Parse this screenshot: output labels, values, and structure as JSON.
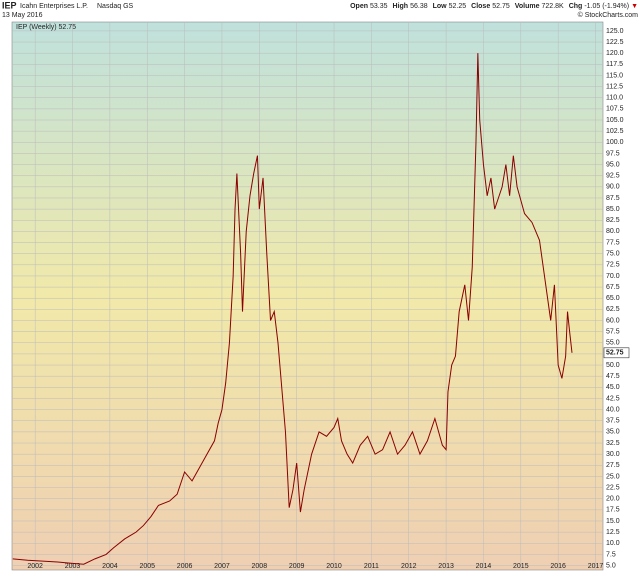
{
  "chart_data": {
    "type": "line",
    "symbol": "IEP",
    "company": "Icahn Enterprises L.P.",
    "exchange": "Nasdaq GS",
    "date": "13 May 2016",
    "quote": [
      {
        "label": "Open",
        "value": "53.35"
      },
      {
        "label": "High",
        "value": "56.38"
      },
      {
        "label": "Low",
        "value": "52.25"
      },
      {
        "label": "Close",
        "value": "52.75"
      },
      {
        "label": "Volume",
        "value": "722.8K"
      },
      {
        "label": "Chg",
        "value": "-1.05 (-1.94%)"
      }
    ],
    "change_arrow": "▼",
    "copyright": "© StockCharts.com",
    "last_value_label": "52.75",
    "x": [
      2001.4,
      2001.8,
      2002.2,
      2002.6,
      2003.0,
      2003.3,
      2003.6,
      2003.9,
      2004.1,
      2004.4,
      2004.7,
      2004.9,
      2005.1,
      2005.3,
      2005.6,
      2005.8,
      2006.0,
      2006.2,
      2006.4,
      2006.6,
      2006.8,
      2006.9,
      2007.0,
      2007.1,
      2007.2,
      2007.3,
      2007.35,
      2007.4,
      2007.5,
      2007.55,
      2007.65,
      2007.75,
      2007.85,
      2007.95,
      2008.0,
      2008.1,
      2008.2,
      2008.3,
      2008.4,
      2008.5,
      2008.6,
      2008.7,
      2008.8,
      2008.9,
      2009.0,
      2009.1,
      2009.2,
      2009.4,
      2009.6,
      2009.8,
      2010.0,
      2010.1,
      2010.2,
      2010.35,
      2010.5,
      2010.7,
      2010.9,
      2011.1,
      2011.3,
      2011.5,
      2011.7,
      2011.9,
      2012.1,
      2012.3,
      2012.5,
      2012.7,
      2012.9,
      2013.0,
      2013.05,
      2013.15,
      2013.25,
      2013.35,
      2013.5,
      2013.6,
      2013.7,
      2013.8,
      2013.85,
      2013.9,
      2014.0,
      2014.1,
      2014.2,
      2014.3,
      2014.5,
      2014.6,
      2014.7,
      2014.8,
      2014.9,
      2015.1,
      2015.3,
      2015.5,
      2015.6,
      2015.8,
      2015.9,
      2016.0,
      2016.1,
      2016.2,
      2016.25,
      2016.3,
      2016.37
    ],
    "series": [
      {
        "name": "IEP (Weekly) 52.75",
        "color": "#8b0000",
        "values": [
          6.5,
          6.2,
          6.0,
          5.8,
          5.5,
          5.3,
          6.5,
          7.5,
          9,
          11,
          12.5,
          14,
          16,
          18.5,
          19.5,
          21,
          26,
          24,
          27,
          30,
          33,
          37,
          40,
          46,
          55,
          70,
          85,
          93,
          75,
          62,
          80,
          88,
          93,
          97,
          85,
          92,
          75,
          60,
          62,
          55,
          45,
          35,
          18,
          22,
          28,
          17,
          22,
          30,
          35,
          34,
          36,
          38,
          33,
          30,
          28,
          32,
          34,
          30,
          31,
          35,
          30,
          32,
          35,
          30,
          33,
          38,
          32,
          31,
          44,
          50,
          52,
          62,
          68,
          60,
          72,
          100,
          120,
          105,
          95,
          88,
          92,
          85,
          90,
          95,
          88,
          97,
          90,
          84,
          82,
          78,
          72,
          60,
          68,
          50,
          47,
          52,
          62,
          58,
          52.75
        ]
      }
    ],
    "xlim": [
      2001.38,
      2017.2
    ],
    "ylim": [
      4,
      127
    ],
    "xticks": [
      2002,
      2003,
      2004,
      2005,
      2006,
      2007,
      2008,
      2009,
      2010,
      2011,
      2012,
      2013,
      2014,
      2015,
      2016,
      2017
    ],
    "yticks": [
      {
        "value": 5,
        "label": "5.0"
      },
      {
        "value": 7.5,
        "label": "7.5"
      },
      {
        "value": 10,
        "label": "10.0"
      },
      {
        "value": 12.5,
        "label": "12.5"
      },
      {
        "value": 15,
        "label": "15.0"
      },
      {
        "value": 17.5,
        "label": "17.5"
      },
      {
        "value": 20,
        "label": "20.0"
      },
      {
        "value": 22.5,
        "label": "22.5"
      },
      {
        "value": 25,
        "label": "25.0"
      },
      {
        "value": 27.5,
        "label": "27.5"
      },
      {
        "value": 30,
        "label": "30.0"
      },
      {
        "value": 32.5,
        "label": "32.5"
      },
      {
        "value": 35,
        "label": "35.0"
      },
      {
        "value": 37.5,
        "label": "37.5"
      },
      {
        "value": 40,
        "label": "40.0"
      },
      {
        "value": 42.5,
        "label": "42.5"
      },
      {
        "value": 45,
        "label": "45.0"
      },
      {
        "value": 47.5,
        "label": "47.5"
      },
      {
        "value": 50,
        "label": "50.0"
      },
      {
        "value": 52.5,
        "label": "52.5"
      },
      {
        "value": 55,
        "label": "55.0"
      },
      {
        "value": 57.5,
        "label": "57.5"
      },
      {
        "value": 60,
        "label": "60.0"
      },
      {
        "value": 62.5,
        "label": "62.5"
      },
      {
        "value": 65,
        "label": "65.0"
      },
      {
        "value": 67.5,
        "label": "67.5"
      },
      {
        "value": 70,
        "label": "70.0"
      },
      {
        "value": 72.5,
        "label": "72.5"
      },
      {
        "value": 75,
        "label": "75.0"
      },
      {
        "value": 77.5,
        "label": "77.5"
      },
      {
        "value": 80,
        "label": "80.0"
      },
      {
        "value": 82.5,
        "label": "82.5"
      },
      {
        "value": 85,
        "label": "85.0"
      },
      {
        "value": 87.5,
        "label": "87.5"
      },
      {
        "value": 90,
        "label": "90.0"
      },
      {
        "value": 92.5,
        "label": "92.5"
      },
      {
        "value": 95,
        "label": "95.0"
      },
      {
        "value": 97.5,
        "label": "97.5"
      },
      {
        "value": 100,
        "label": "100.0"
      },
      {
        "value": 102.5,
        "label": "102.5"
      },
      {
        "value": 105,
        "label": "105.0"
      },
      {
        "value": 107.5,
        "label": "107.5"
      },
      {
        "value": 110,
        "label": "110.0"
      },
      {
        "value": 112.5,
        "label": "112.5"
      },
      {
        "value": 115,
        "label": "115.0"
      },
      {
        "value": 117.5,
        "label": "117.5"
      },
      {
        "value": 120,
        "label": "120.0"
      },
      {
        "value": 122.5,
        "label": "122.5"
      },
      {
        "value": 125,
        "label": "125.0"
      }
    ],
    "grid": true
  }
}
